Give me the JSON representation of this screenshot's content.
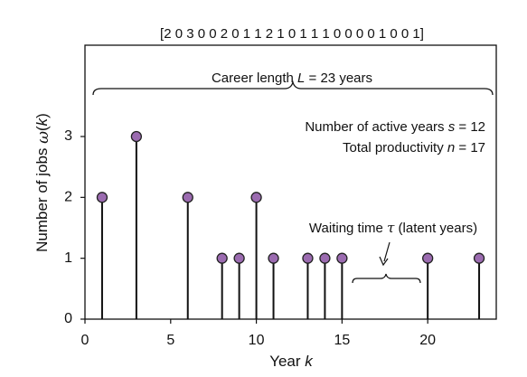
{
  "chart_data": {
    "type": "stem",
    "sequence_label": "[2 0 3 0 0 2 0 1 1 2 1 0 1 1 1 0 0 0 0 1 0 0 1]",
    "x_label": [
      "Year ",
      "k"
    ],
    "y_label": [
      "Number of jobs ",
      "ω",
      "(",
      "k",
      ")"
    ],
    "annotations": {
      "career": [
        "Career length ",
        "L",
        " = 23 years"
      ],
      "active": [
        "Number of active years ",
        "s",
        " = 12"
      ],
      "productivity": [
        "Total productivity ",
        "n",
        " = 17"
      ],
      "waiting": [
        "Waiting time ",
        "τ",
        " (latent years)"
      ]
    },
    "x": [
      1,
      3,
      6,
      8,
      9,
      10,
      11,
      13,
      14,
      15,
      20,
      23
    ],
    "values": [
      2,
      3,
      2,
      1,
      1,
      2,
      1,
      1,
      1,
      1,
      1,
      1
    ],
    "color": "#9b6bb0",
    "xlim": [
      0,
      24
    ],
    "xticks": [
      0,
      5,
      10,
      15,
      20
    ],
    "ylim": [
      0,
      4.5
    ],
    "yticks": [
      0,
      1,
      2,
      3
    ]
  }
}
